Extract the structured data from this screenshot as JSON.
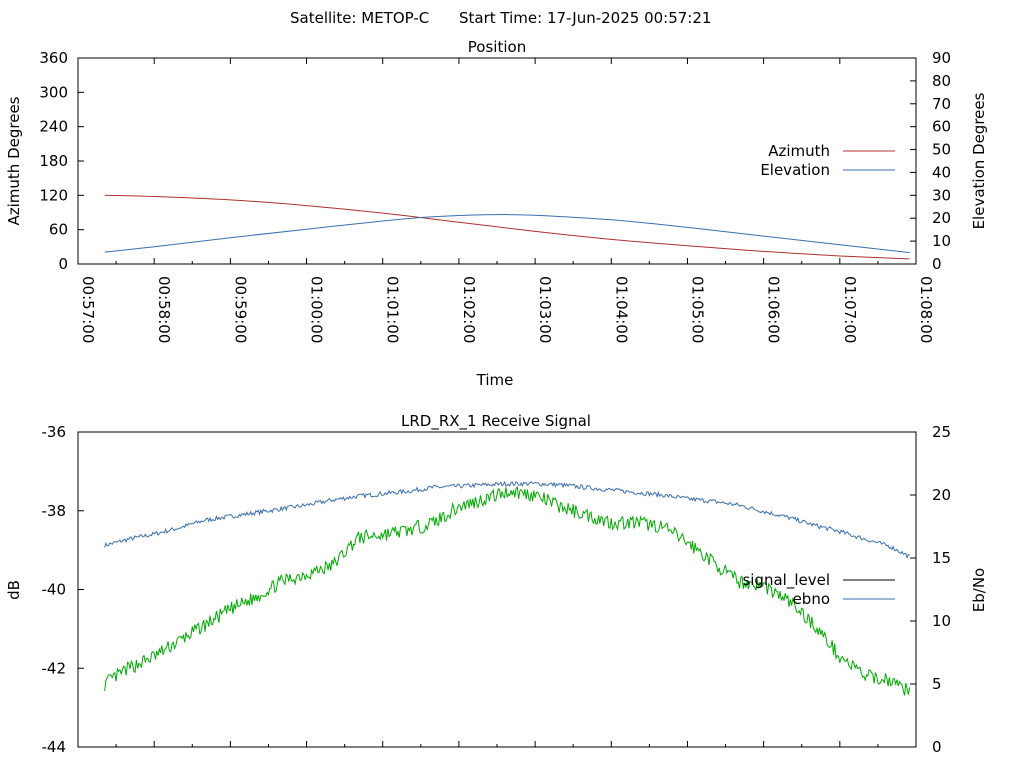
{
  "header": {
    "satellite_label": "Satellite: METOP-C",
    "start_time_label": "Start Time: 17-Jun-2025 00:57:21"
  },
  "colors": {
    "azimuth": "#b03030",
    "elevation": "#3a6fb0",
    "ebno": "#3a6fb0",
    "signal_level": "#00aa00",
    "signal_level_legend": "#000000"
  },
  "chart_data": [
    {
      "type": "line",
      "title": "Position",
      "xlabel": "Time",
      "ylabel_left": "Azimuth Degrees",
      "ylabel_right": "Elevation Degrees",
      "xticks": [
        "00:57:00",
        "00:58:00",
        "00:59:00",
        "01:00:00",
        "01:01:00",
        "01:02:00",
        "01:03:00",
        "01:04:00",
        "01:05:00",
        "01:06:00",
        "01:07:00",
        "01:08:00"
      ],
      "xlim": [
        "00:57:00",
        "01:08:00"
      ],
      "ylim_left": [
        0,
        360
      ],
      "yticks_left": [
        0,
        60,
        120,
        180,
        240,
        300,
        360
      ],
      "ylim_right": [
        0,
        90
      ],
      "yticks_right": [
        0,
        10,
        20,
        30,
        40,
        50,
        60,
        70,
        80,
        90
      ],
      "legend_position": "right",
      "series": [
        {
          "name": "Azimuth",
          "axis": "left",
          "x": [
            "00:57:21",
            "00:58:00",
            "00:59:00",
            "01:00:00",
            "01:01:00",
            "01:02:00",
            "01:03:00",
            "01:04:00",
            "01:05:00",
            "01:06:00",
            "01:07:00",
            "01:07:55"
          ],
          "y": [
            120,
            118,
            112,
            102,
            89,
            73,
            57,
            43,
            32,
            22,
            14,
            9
          ]
        },
        {
          "name": "Elevation",
          "axis": "right",
          "x": [
            "00:57:21",
            "00:58:00",
            "00:59:00",
            "01:00:00",
            "01:01:00",
            "01:01:30",
            "01:02:00",
            "01:02:30",
            "01:03:00",
            "01:04:00",
            "01:05:00",
            "01:06:00",
            "01:07:00",
            "01:07:55"
          ],
          "y": [
            5.2,
            7.5,
            11.5,
            15.2,
            18.8,
            20.3,
            21.2,
            21.6,
            21.3,
            19.3,
            16.0,
            12.2,
            8.4,
            5.0
          ]
        }
      ]
    },
    {
      "type": "line",
      "title": "LRD_RX_1 Receive Signal",
      "ylabel_left": "dB",
      "ylabel_right": "Eb/No",
      "xlim": [
        "00:57:00",
        "01:08:00"
      ],
      "ylim_left": [
        -44,
        -36
      ],
      "yticks_left": [
        -44,
        -42,
        -40,
        -38,
        -36
      ],
      "ylim_right": [
        0,
        25
      ],
      "yticks_right": [
        0,
        5,
        10,
        15,
        20,
        25
      ],
      "legend_position": "right",
      "series": [
        {
          "name": "signal_level",
          "axis": "left",
          "x": [
            "00:57:21",
            "00:57:40",
            "00:58:00",
            "00:58:20",
            "00:58:40",
            "00:59:00",
            "00:59:20",
            "00:59:40",
            "01:00:00",
            "01:00:20",
            "01:00:40",
            "01:01:00",
            "01:01:20",
            "01:01:40",
            "01:02:00",
            "01:02:20",
            "01:02:40",
            "01:03:00",
            "01:03:20",
            "01:03:40",
            "01:04:00",
            "01:04:20",
            "01:04:40",
            "01:05:00",
            "01:05:20",
            "01:05:40",
            "01:06:00",
            "01:06:20",
            "01:06:40",
            "01:07:00",
            "01:07:20",
            "01:07:40",
            "01:07:55"
          ],
          "y": [
            -42.4,
            -42.0,
            -41.7,
            -41.3,
            -40.9,
            -40.5,
            -40.2,
            -39.8,
            -39.6,
            -39.4,
            -38.7,
            -38.6,
            -38.5,
            -38.3,
            -37.9,
            -37.7,
            -37.5,
            -37.6,
            -37.9,
            -38.1,
            -38.3,
            -38.3,
            -38.4,
            -38.8,
            -39.3,
            -39.8,
            -39.9,
            -40.3,
            -40.9,
            -41.7,
            -42.2,
            -42.3,
            -42.6
          ]
        },
        {
          "name": "ebno",
          "axis": "right",
          "x": [
            "00:57:21",
            "00:57:40",
            "00:58:00",
            "00:58:20",
            "00:58:40",
            "00:59:00",
            "00:59:20",
            "00:59:40",
            "01:00:00",
            "01:00:20",
            "01:00:40",
            "01:01:00",
            "01:01:20",
            "01:01:40",
            "01:02:00",
            "01:02:20",
            "01:02:40",
            "01:03:00",
            "01:03:20",
            "01:03:40",
            "01:04:00",
            "01:04:20",
            "01:04:40",
            "01:05:00",
            "01:05:20",
            "01:05:40",
            "01:06:00",
            "01:06:20",
            "01:06:40",
            "01:07:00",
            "01:07:20",
            "01:07:40",
            "01:07:55"
          ],
          "y": [
            16.0,
            16.5,
            16.9,
            17.4,
            18.0,
            18.3,
            18.6,
            18.9,
            19.2,
            19.6,
            19.9,
            20.1,
            20.3,
            20.6,
            20.7,
            20.8,
            20.9,
            20.9,
            20.8,
            20.6,
            20.4,
            20.2,
            20.0,
            19.7,
            19.5,
            19.2,
            18.7,
            18.2,
            17.6,
            17.1,
            16.5,
            15.9,
            15.1
          ]
        }
      ]
    }
  ]
}
